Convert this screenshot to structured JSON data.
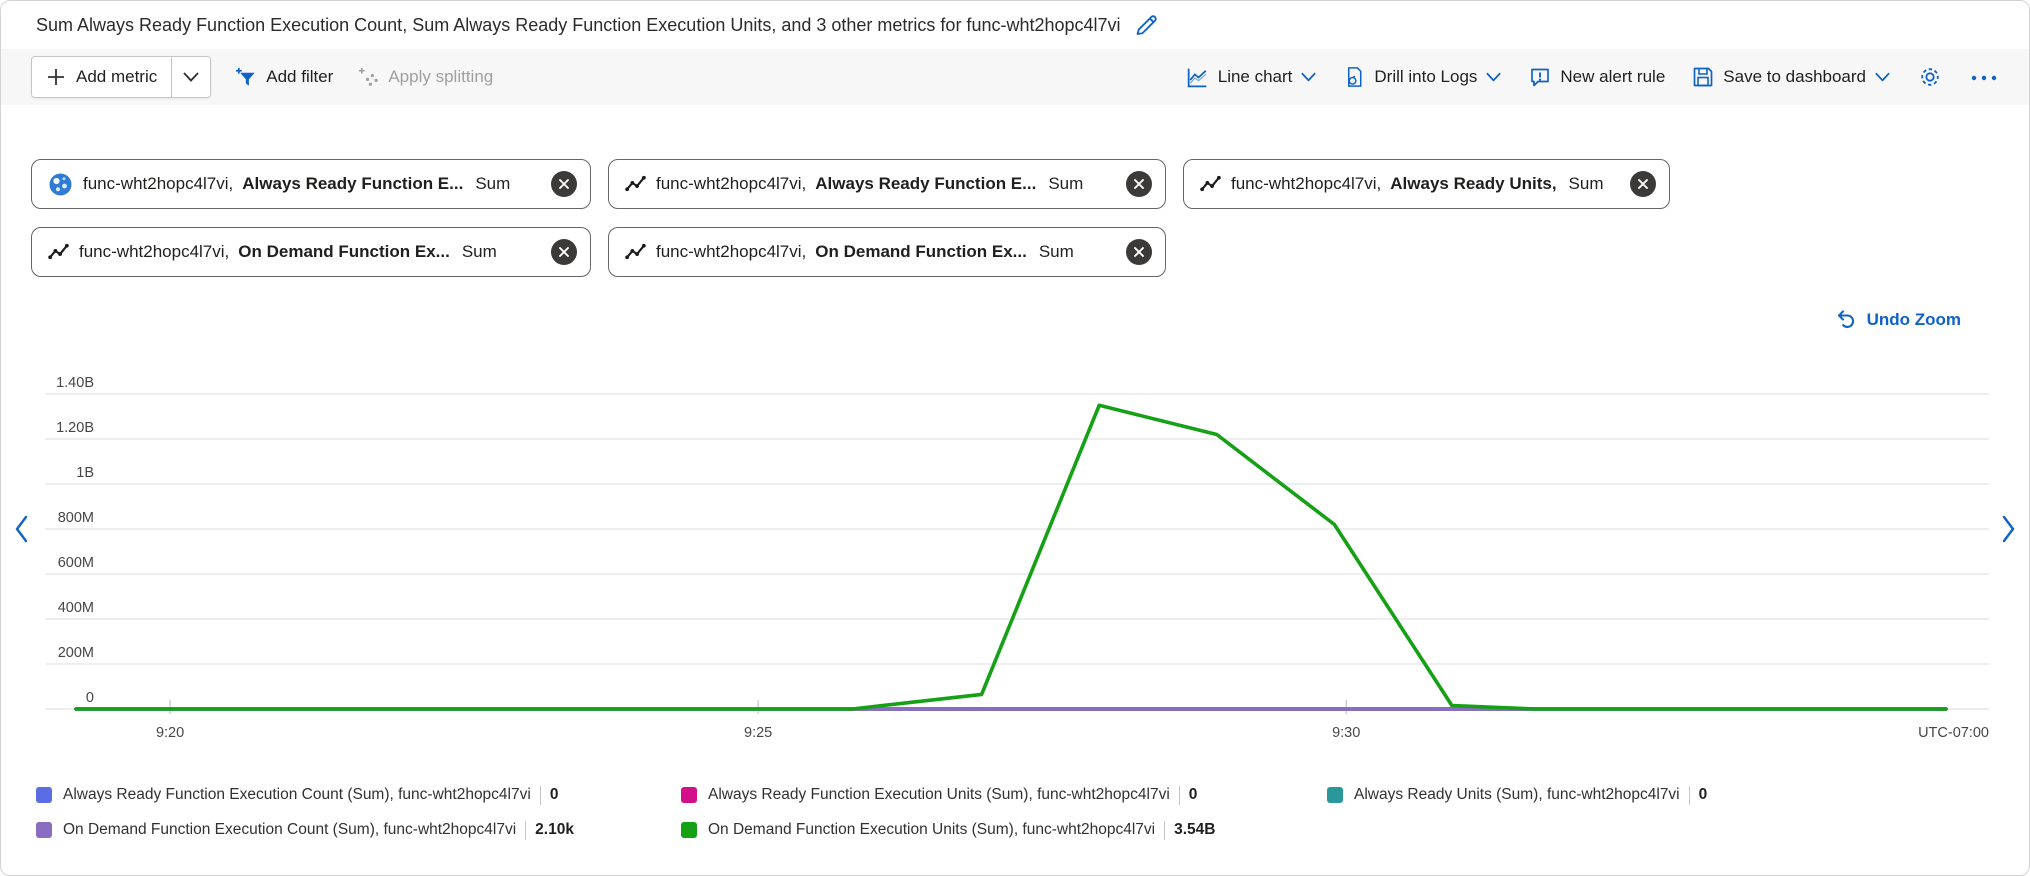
{
  "accent_color": "#0f62c6",
  "title": {
    "text": "Sum Always Ready Function Execution Count, Sum Always Ready Function Execution Units, and 3 other metrics for func-wht2hopc4l7vi"
  },
  "toolbar": {
    "add_metric": {
      "label": "Add metric",
      "icon": "plus-icon",
      "dropdown": true
    },
    "add_filter": {
      "label": "Add filter",
      "icon": "filter-add-icon"
    },
    "apply_splitting": {
      "label": "Apply splitting",
      "icon": "splitting-icon",
      "disabled": true
    },
    "chart_type": {
      "label": "Line chart",
      "icon": "line-chart-icon",
      "dropdown": true
    },
    "drill_into_logs": {
      "label": "Drill into Logs",
      "icon": "drill-logs-icon",
      "dropdown": true
    },
    "new_alert_rule": {
      "label": "New alert rule",
      "icon": "alert-bubble-icon"
    },
    "save_to_dashboard": {
      "label": "Save to dashboard",
      "icon": "save-icon",
      "dropdown": true
    },
    "settings_icon": "gear-icon",
    "more_icon": "ellipsis-icon"
  },
  "pills": [
    {
      "icon": "resource-globe-icon",
      "resource": "func-wht2hopc4l7vi,",
      "metric": "Always Ready Function E...",
      "aggregation": "Sum"
    },
    {
      "icon": "metric-line-icon",
      "resource": "func-wht2hopc4l7vi,",
      "metric": "Always Ready Function E...",
      "aggregation": "Sum"
    },
    {
      "icon": "metric-line-icon",
      "resource": "func-wht2hopc4l7vi,",
      "metric": "Always Ready Units,",
      "aggregation": "Sum"
    },
    {
      "icon": "metric-line-icon",
      "resource": "func-wht2hopc4l7vi,",
      "metric": "On Demand Function Ex...",
      "aggregation": "Sum"
    },
    {
      "icon": "metric-line-icon",
      "resource": "func-wht2hopc4l7vi,",
      "metric": "On Demand Function Ex...",
      "aggregation": "Sum"
    }
  ],
  "chart": {
    "undo_zoom_label": "Undo Zoom"
  },
  "chart_data": {
    "type": "line",
    "title": "",
    "xlabel": "",
    "ylabel": "",
    "grid": true,
    "legend_position": "bottom",
    "x_unit": "minutes-after-9:00",
    "xlim": [
      19.2,
      35.1
    ],
    "ylim": [
      0,
      1400000000
    ],
    "utc_label": "UTC-07:00",
    "x_ticks": [
      {
        "t": 20,
        "label": "9:20"
      },
      {
        "t": 25,
        "label": "9:25"
      },
      {
        "t": 30,
        "label": "9:30"
      }
    ],
    "y_ticks": [
      {
        "v": 1400000000,
        "label": "1.40B"
      },
      {
        "v": 1200000000,
        "label": "1.20B"
      },
      {
        "v": 1000000000,
        "label": "1B"
      },
      {
        "v": 800000000,
        "label": "800M"
      },
      {
        "v": 600000000,
        "label": "600M"
      },
      {
        "v": 400000000,
        "label": "400M"
      },
      {
        "v": 200000000,
        "label": "200M"
      },
      {
        "v": 0,
        "label": "0"
      }
    ],
    "series": [
      {
        "name": "Always Ready Function Execution Count (Sum), func-wht2hopc4l7vi",
        "color": "#5a6de4",
        "total": "0",
        "points": [
          [
            19.2,
            0
          ],
          [
            35.1,
            0
          ]
        ]
      },
      {
        "name": "Always Ready Function Execution Units (Sum), func-wht2hopc4l7vi",
        "color": "#d30f8c",
        "total": "0",
        "points": [
          [
            19.2,
            0
          ],
          [
            35.1,
            0
          ]
        ]
      },
      {
        "name": "Always Ready Units (Sum), func-wht2hopc4l7vi",
        "color": "#2a989b",
        "total": "0",
        "points": [
          [
            19.2,
            0
          ],
          [
            35.1,
            0
          ]
        ]
      },
      {
        "name": "On Demand Function Execution Count (Sum), func-wht2hopc4l7vi",
        "color": "#8a6cc0",
        "total": "2.10k",
        "points": [
          [
            19.2,
            0
          ],
          [
            35.1,
            0
          ]
        ]
      },
      {
        "name": "On Demand Function Execution Units (Sum), func-wht2hopc4l7vi",
        "color": "#16a016",
        "total": "3.54B",
        "points": [
          [
            19.2,
            0
          ],
          [
            25.8,
            0
          ],
          [
            26.9,
            65000000
          ],
          [
            27.9,
            1350000000
          ],
          [
            28.9,
            1220000000
          ],
          [
            29.9,
            820000000
          ],
          [
            30.9,
            15000000
          ],
          [
            31.6,
            0
          ],
          [
            35.1,
            0
          ]
        ]
      }
    ]
  }
}
